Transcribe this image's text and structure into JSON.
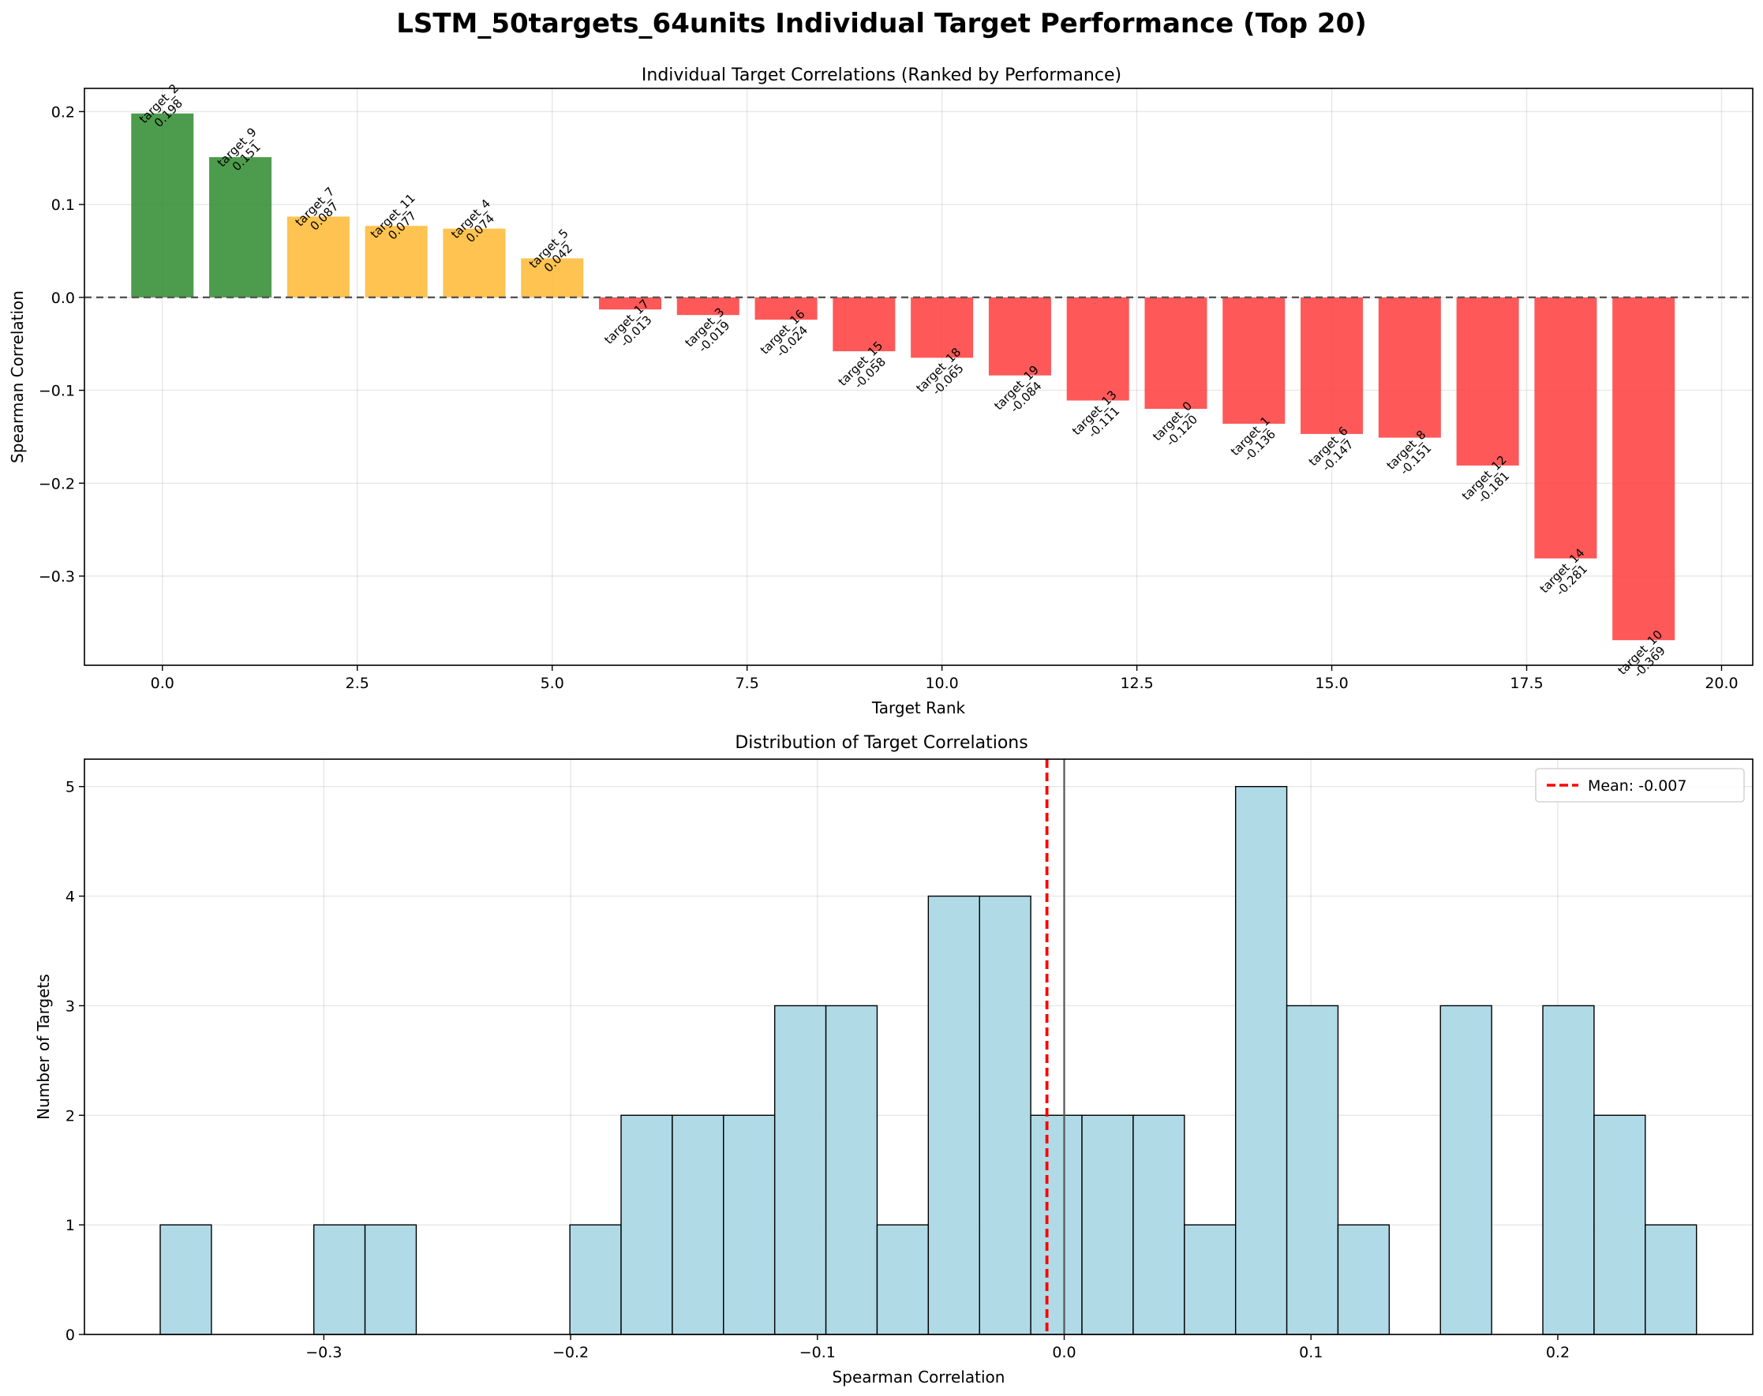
{
  "figure": {
    "suptitle": "LSTM_50targets_64units Individual Target Performance (Top 20)"
  },
  "chart_data": [
    {
      "type": "bar",
      "title": "Individual Target Correlations (Ranked by Performance)",
      "xlabel": "Target Rank",
      "ylabel": "Spearman Correlation",
      "xlim": [
        -1.0,
        20.4
      ],
      "ylim": [
        -0.396,
        0.225
      ],
      "xticks": [
        0.0,
        2.5,
        5.0,
        7.5,
        10.0,
        12.5,
        15.0,
        17.5,
        20.0
      ],
      "xtick_labels": [
        "0.0",
        "2.5",
        "5.0",
        "7.5",
        "10.0",
        "12.5",
        "15.0",
        "17.5",
        "20.0"
      ],
      "yticks": [
        -0.3,
        -0.2,
        -0.1,
        0.0,
        0.1,
        0.2
      ],
      "ytick_labels": [
        "−0.3",
        "−0.2",
        "−0.1",
        "0.0",
        "0.1",
        "0.2"
      ],
      "grid": true,
      "reference_line": {
        "y": 0.0,
        "style": "dashed",
        "color": "#555555"
      },
      "colors": {
        "strong": "#2e8b2e",
        "moderate": "#ffb833",
        "negative": "#ff3b3b"
      },
      "x": [
        0,
        1,
        2,
        3,
        4,
        5,
        6,
        7,
        8,
        9,
        10,
        11,
        12,
        13,
        14,
        15,
        16,
        17,
        18,
        19
      ],
      "targets": [
        "target_2",
        "target_9",
        "target_7",
        "target_11",
        "target_4",
        "target_5",
        "target_17",
        "target_3",
        "target_16",
        "target_15",
        "target_18",
        "target_19",
        "target_13",
        "target_0",
        "target_1",
        "target_6",
        "target_8",
        "target_12",
        "target_14",
        "target_10"
      ],
      "values": [
        0.198,
        0.151,
        0.087,
        0.077,
        0.074,
        0.042,
        -0.013,
        -0.019,
        -0.024,
        -0.058,
        -0.065,
        -0.084,
        -0.111,
        -0.12,
        -0.136,
        -0.147,
        -0.151,
        -0.181,
        -0.281,
        -0.369
      ],
      "value_labels": [
        "0.198",
        "0.151",
        "0.087",
        "0.077",
        "0.074",
        "0.042",
        "-0.013",
        "-0.019",
        "-0.024",
        "-0.058",
        "-0.065",
        "-0.084",
        "-0.111",
        "-0.120",
        "-0.136",
        "-0.147",
        "-0.151",
        "-0.181",
        "-0.281",
        "-0.369"
      ],
      "bar_colors": [
        "strong",
        "strong",
        "moderate",
        "moderate",
        "moderate",
        "moderate",
        "negative",
        "negative",
        "negative",
        "negative",
        "negative",
        "negative",
        "negative",
        "negative",
        "negative",
        "negative",
        "negative",
        "negative",
        "negative",
        "negative"
      ]
    },
    {
      "type": "histogram",
      "title": "Distribution of Target Correlations",
      "xlabel": "Spearman Correlation",
      "ylabel": "Number of Targets",
      "xlim": [
        -0.397,
        0.279
      ],
      "ylim": [
        0,
        5.25
      ],
      "xticks": [
        -0.3,
        -0.2,
        -0.1,
        0.0,
        0.1,
        0.2
      ],
      "xtick_labels": [
        "−0.3",
        "−0.2",
        "−0.1",
        "0.0",
        "0.1",
        "0.2"
      ],
      "yticks": [
        0,
        1,
        2,
        3,
        4,
        5
      ],
      "ytick_labels": [
        "0",
        "1",
        "2",
        "3",
        "4",
        "5"
      ],
      "grid": true,
      "bar_color": "#add8e6",
      "bin_start": -0.3663,
      "bin_width": 0.02075,
      "counts": [
        1,
        0,
        0,
        1,
        1,
        0,
        0,
        0,
        1,
        2,
        2,
        2,
        3,
        3,
        1,
        4,
        4,
        2,
        2,
        2,
        1,
        5,
        3,
        1,
        0,
        3,
        0,
        3,
        2,
        1
      ],
      "zero_line": {
        "x": 0.0,
        "color": "#555555"
      },
      "mean": -0.007,
      "mean_color": "#ff0000",
      "legend": {
        "label": "Mean: -0.007",
        "placement": "upper-right"
      }
    }
  ]
}
